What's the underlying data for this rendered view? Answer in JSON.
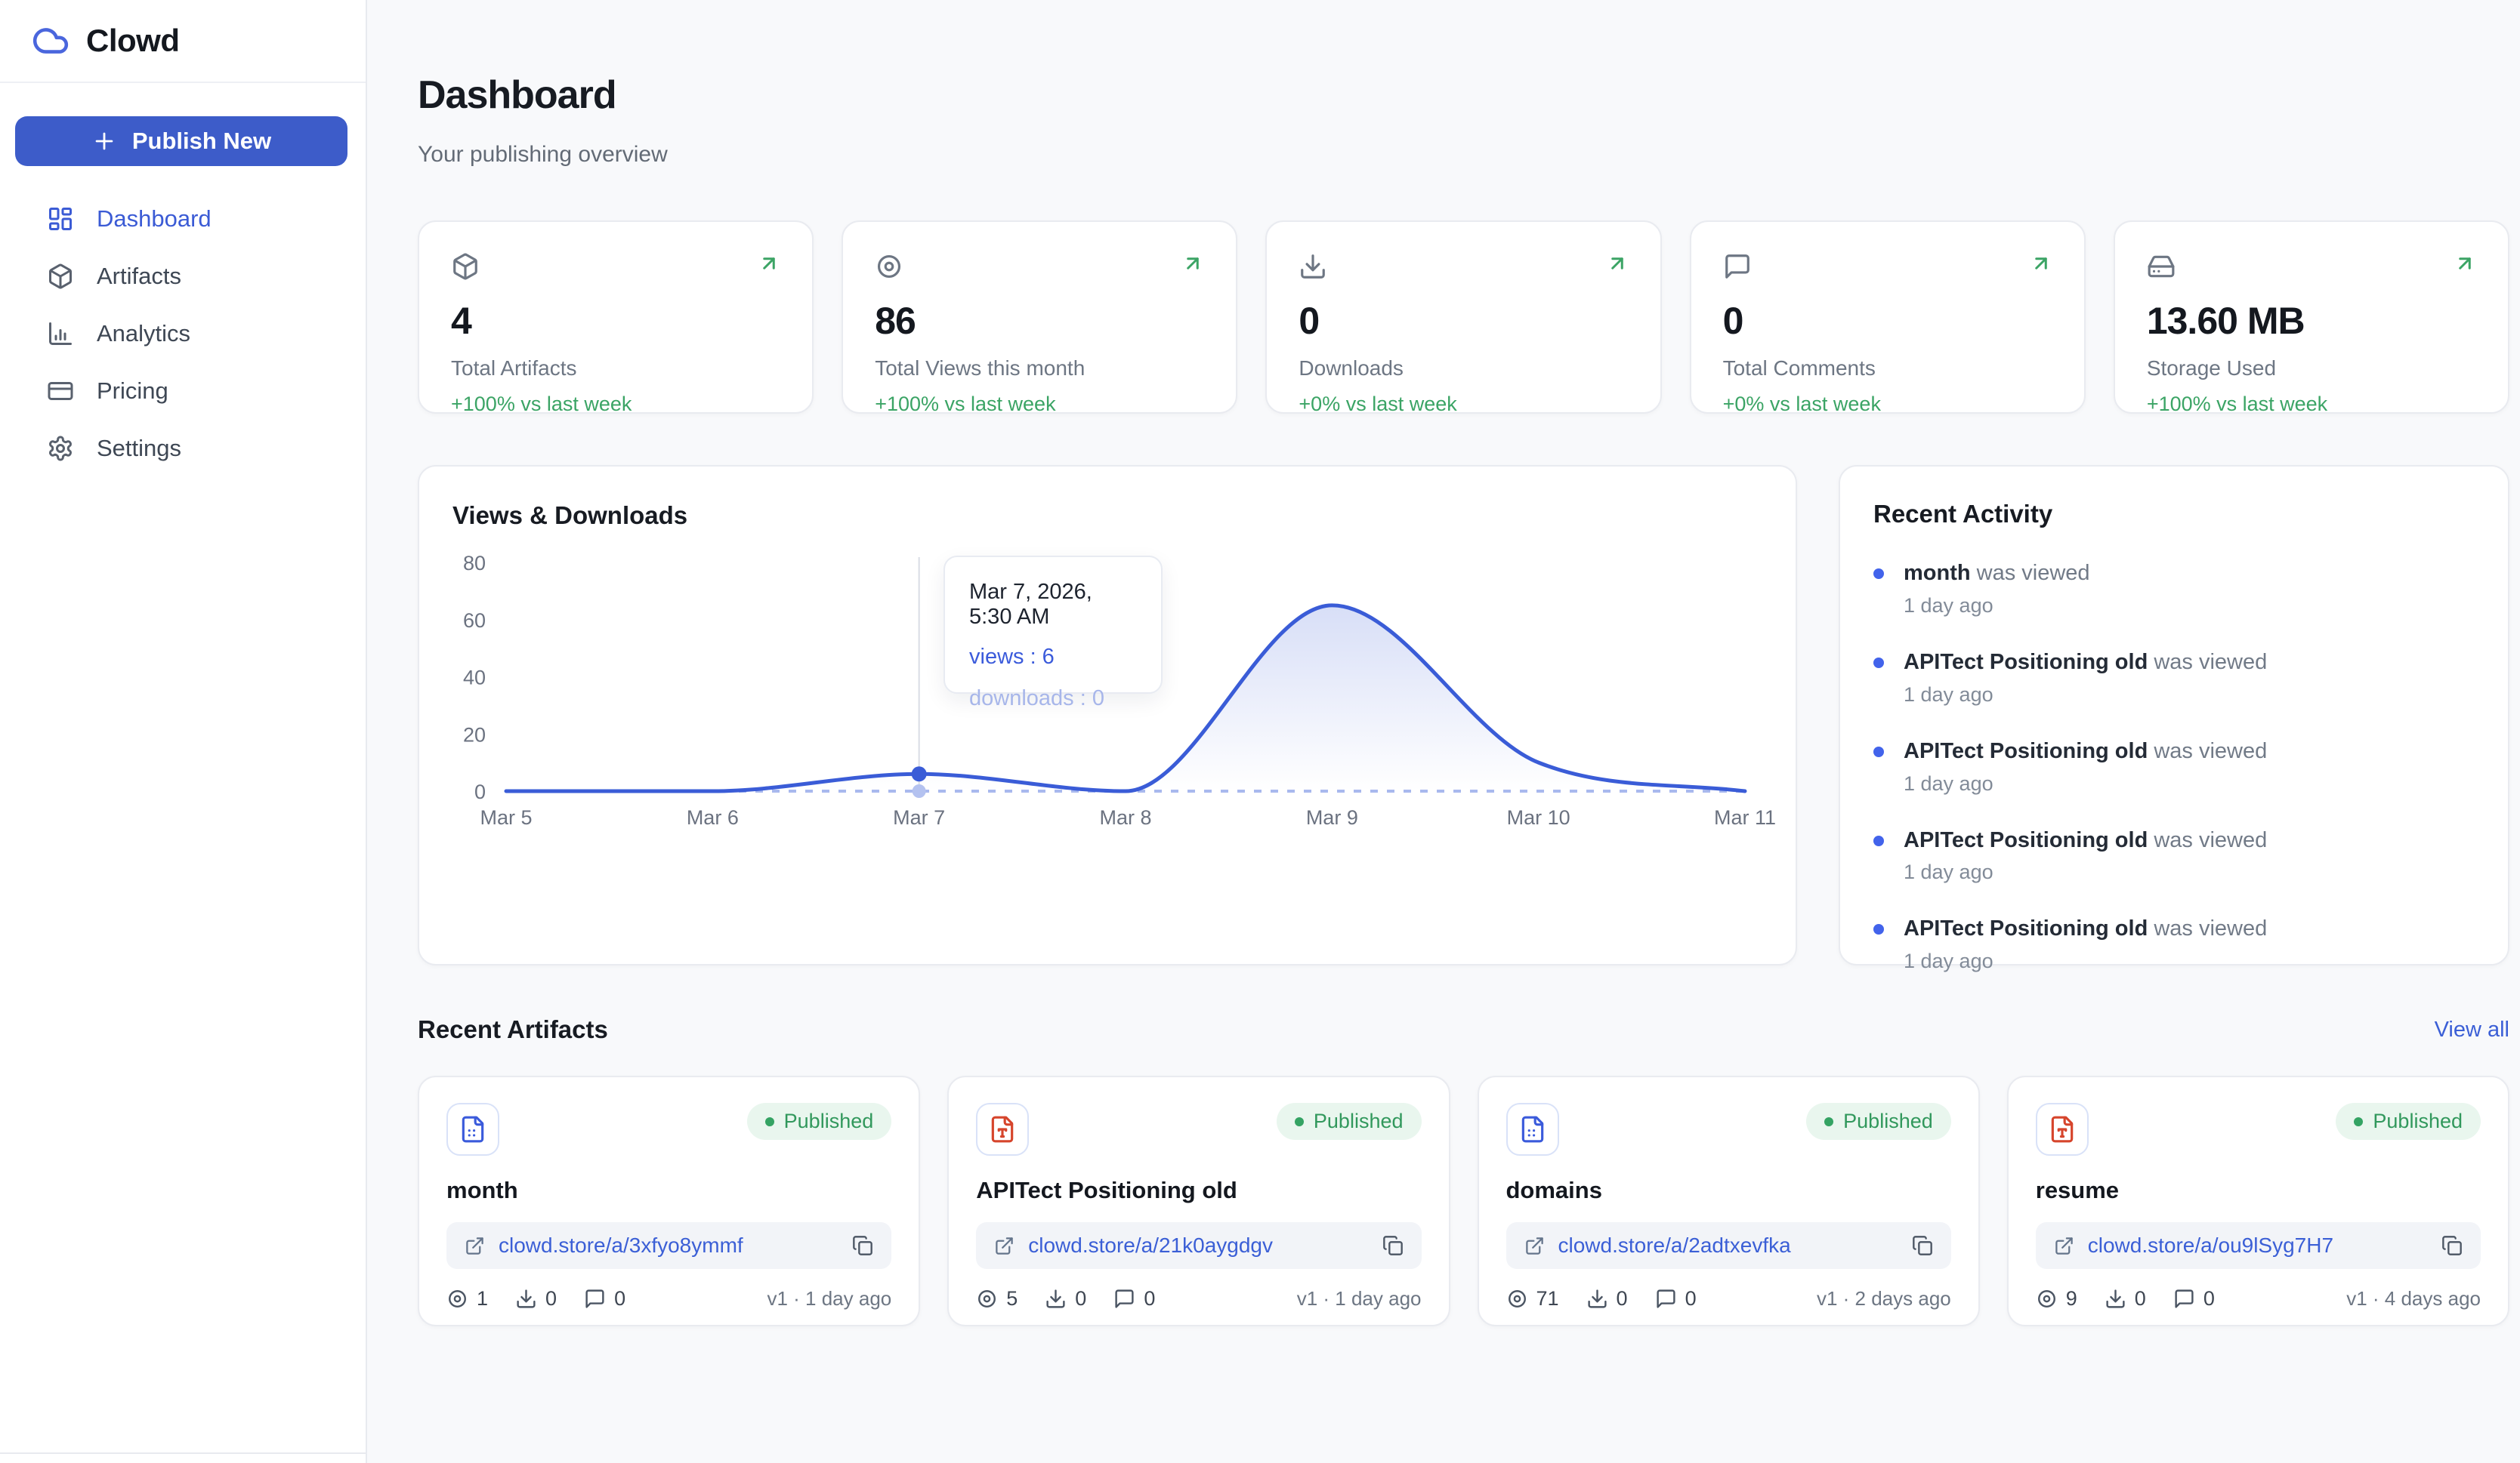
{
  "app": {
    "name": "Clowd"
  },
  "sidebar": {
    "publish_label": "Publish New",
    "items": [
      {
        "label": "Dashboard"
      },
      {
        "label": "Artifacts"
      },
      {
        "label": "Analytics"
      },
      {
        "label": "Pricing"
      },
      {
        "label": "Settings"
      }
    ]
  },
  "header": {
    "title": "Dashboard",
    "subtitle": "Your publishing overview"
  },
  "stats": [
    {
      "icon": "package-icon",
      "value": "4",
      "label": "Total Artifacts",
      "delta": "+100% vs last week"
    },
    {
      "icon": "eye-icon",
      "value": "86",
      "label": "Total Views this month",
      "delta": "+100% vs last week"
    },
    {
      "icon": "download-icon",
      "value": "0",
      "label": "Downloads",
      "delta": "+0% vs last week"
    },
    {
      "icon": "comment-icon",
      "value": "0",
      "label": "Total Comments",
      "delta": "+0% vs last week"
    },
    {
      "icon": "storage-icon",
      "value": "13.60 MB",
      "label": "Storage Used",
      "delta": "+100% vs last week"
    }
  ],
  "chart_data": {
    "type": "line",
    "title": "Views & Downloads",
    "x_labels": [
      "Mar 5",
      "Mar 6",
      "Mar 7",
      "Mar 8",
      "Mar 9",
      "Mar 10",
      "Mar 11"
    ],
    "series": [
      {
        "name": "views",
        "color": "#3a5cd7",
        "style": "solid",
        "area": true,
        "values": [
          0,
          0,
          6,
          0,
          65,
          10,
          0
        ]
      },
      {
        "name": "downloads",
        "color": "#a9b9ee",
        "style": "dashed",
        "area": false,
        "values": [
          0,
          0,
          0,
          0,
          0,
          0,
          0
        ]
      }
    ],
    "ylim": [
      0,
      80
    ],
    "yticks": [
      0,
      20,
      40,
      60,
      80
    ],
    "grid": false,
    "legend": "none",
    "highlight": {
      "x_index": 2,
      "views": 6,
      "downloads": 0
    },
    "tooltip": {
      "date": "Mar 7, 2026, 5:30 AM",
      "views": "views : 6",
      "downloads": "downloads : 0"
    }
  },
  "activity": {
    "title": "Recent Activity",
    "items": [
      {
        "name": "month",
        "action": "was viewed",
        "time": "1 day ago"
      },
      {
        "name": "APITect Positioning old",
        "action": "was viewed",
        "time": "1 day ago"
      },
      {
        "name": "APITect Positioning old",
        "action": "was viewed",
        "time": "1 day ago"
      },
      {
        "name": "APITect Positioning old",
        "action": "was viewed",
        "time": "1 day ago"
      },
      {
        "name": "APITect Positioning old",
        "action": "was viewed",
        "time": "1 day ago"
      }
    ]
  },
  "artifacts": {
    "title": "Recent Artifacts",
    "view_all": "View all",
    "cards": [
      {
        "name": "month",
        "file_type": "document",
        "status": "Published",
        "url": "clowd.store/a/3xfyo8ymmf",
        "views": "1",
        "downloads": "0",
        "comments": "0",
        "meta": "v1 · 1 day ago"
      },
      {
        "name": "APITect Positioning old",
        "file_type": "text",
        "status": "Published",
        "url": "clowd.store/a/21k0aygdgv",
        "views": "5",
        "downloads": "0",
        "comments": "0",
        "meta": "v1 · 1 day ago"
      },
      {
        "name": "domains",
        "file_type": "document",
        "status": "Published",
        "url": "clowd.store/a/2adtxevfka",
        "views": "71",
        "downloads": "0",
        "comments": "0",
        "meta": "v1 · 2 days ago"
      },
      {
        "name": "resume",
        "file_type": "text",
        "status": "Published",
        "url": "clowd.store/a/ou9lSyg7H7",
        "views": "9",
        "downloads": "0",
        "comments": "0",
        "meta": "v1 · 4 days ago"
      }
    ]
  },
  "colors": {
    "accent": "#3d5cc9",
    "link": "#3b5fd6",
    "green": "#2f9e5f",
    "chart_views": "#3a5cd7",
    "chart_downloads": "#a9b9ee",
    "activity_bullet": "#4263eb",
    "file_red": "#d6452c",
    "file_blue": "#3b5bdb"
  }
}
